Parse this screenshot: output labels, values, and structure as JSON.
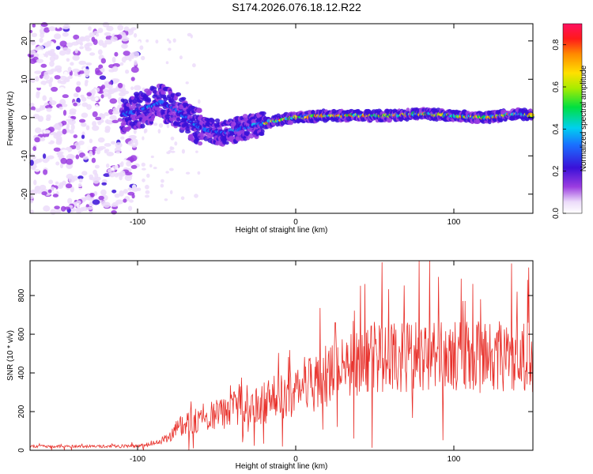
{
  "figure": {
    "title": "S174.2026.076.18.12.R22"
  },
  "chart_data": [
    {
      "type": "heatmap",
      "name": "spectrogram",
      "xlabel": "Height of straight line (km)",
      "ylabel": "Frequency (Hz)",
      "xlim": [
        -168,
        150
      ],
      "ylim": [
        -25,
        24.5
      ],
      "xticks": [
        -100,
        0,
        100
      ],
      "yticks": [
        -20,
        -10,
        0,
        10,
        20
      ],
      "ridge_center_hz": [
        [
          -110,
          0.5
        ],
        [
          -95,
          2.5
        ],
        [
          -85,
          4.0
        ],
        [
          -75,
          2.0
        ],
        [
          -65,
          -1.5
        ],
        [
          -55,
          -3.5
        ],
        [
          -45,
          -4.0
        ],
        [
          -35,
          -3.0
        ],
        [
          -25,
          -2.0
        ],
        [
          -15,
          -1.0
        ],
        [
          0,
          0.0
        ],
        [
          20,
          0.5
        ],
        [
          40,
          0.5
        ],
        [
          60,
          0.5
        ],
        [
          80,
          1.0
        ],
        [
          100,
          0.5
        ],
        [
          120,
          0.0
        ],
        [
          140,
          1.0
        ],
        [
          150,
          0.5
        ]
      ],
      "colorbar": {
        "label": "Normalized spectral amplitude",
        "range": [
          0.0,
          0.9
        ],
        "ticks": [
          0.0,
          0.2,
          0.4,
          0.6,
          0.8
        ]
      }
    },
    {
      "type": "line",
      "name": "snr",
      "xlabel": "Height of straight line (km)",
      "ylabel": "SNR (10 * v/v)",
      "xlim": [
        -168,
        150
      ],
      "ylim": [
        0,
        980
      ],
      "xticks": [
        -100,
        0,
        100
      ],
      "yticks": [
        0,
        200,
        400,
        600,
        800
      ],
      "color": "#e8302a",
      "trend_points": [
        [
          -168,
          20
        ],
        [
          -100,
          22
        ],
        [
          -85,
          45
        ],
        [
          -70,
          140
        ],
        [
          -55,
          170
        ],
        [
          -40,
          210
        ],
        [
          -30,
          200
        ],
        [
          -20,
          240
        ],
        [
          -10,
          280
        ],
        [
          0,
          320
        ],
        [
          15,
          370
        ],
        [
          30,
          440
        ],
        [
          50,
          470
        ],
        [
          70,
          480
        ],
        [
          90,
          490
        ],
        [
          110,
          490
        ],
        [
          130,
          490
        ],
        [
          150,
          480
        ]
      ],
      "peaks": [
        [
          -50,
          260
        ],
        [
          -35,
          330
        ],
        [
          -20,
          350
        ],
        [
          25,
          660
        ],
        [
          78,
          980
        ],
        [
          112,
          860
        ],
        [
          140,
          820
        ]
      ]
    }
  ]
}
